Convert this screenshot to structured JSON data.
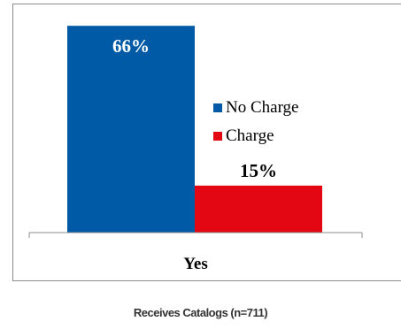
{
  "chart_data": {
    "type": "bar",
    "categories": [
      "Yes"
    ],
    "series": [
      {
        "name": "No Charge",
        "values": [
          66
        ],
        "color": "#005aa6"
      },
      {
        "name": "Charge",
        "values": [
          15
        ],
        "color": "#e30613"
      }
    ],
    "data_labels": [
      "66%",
      "15%"
    ],
    "ylim": [
      0,
      70
    ],
    "grid": false,
    "legend_position": "right"
  },
  "caption": "Receives Catalogs (n=711)"
}
